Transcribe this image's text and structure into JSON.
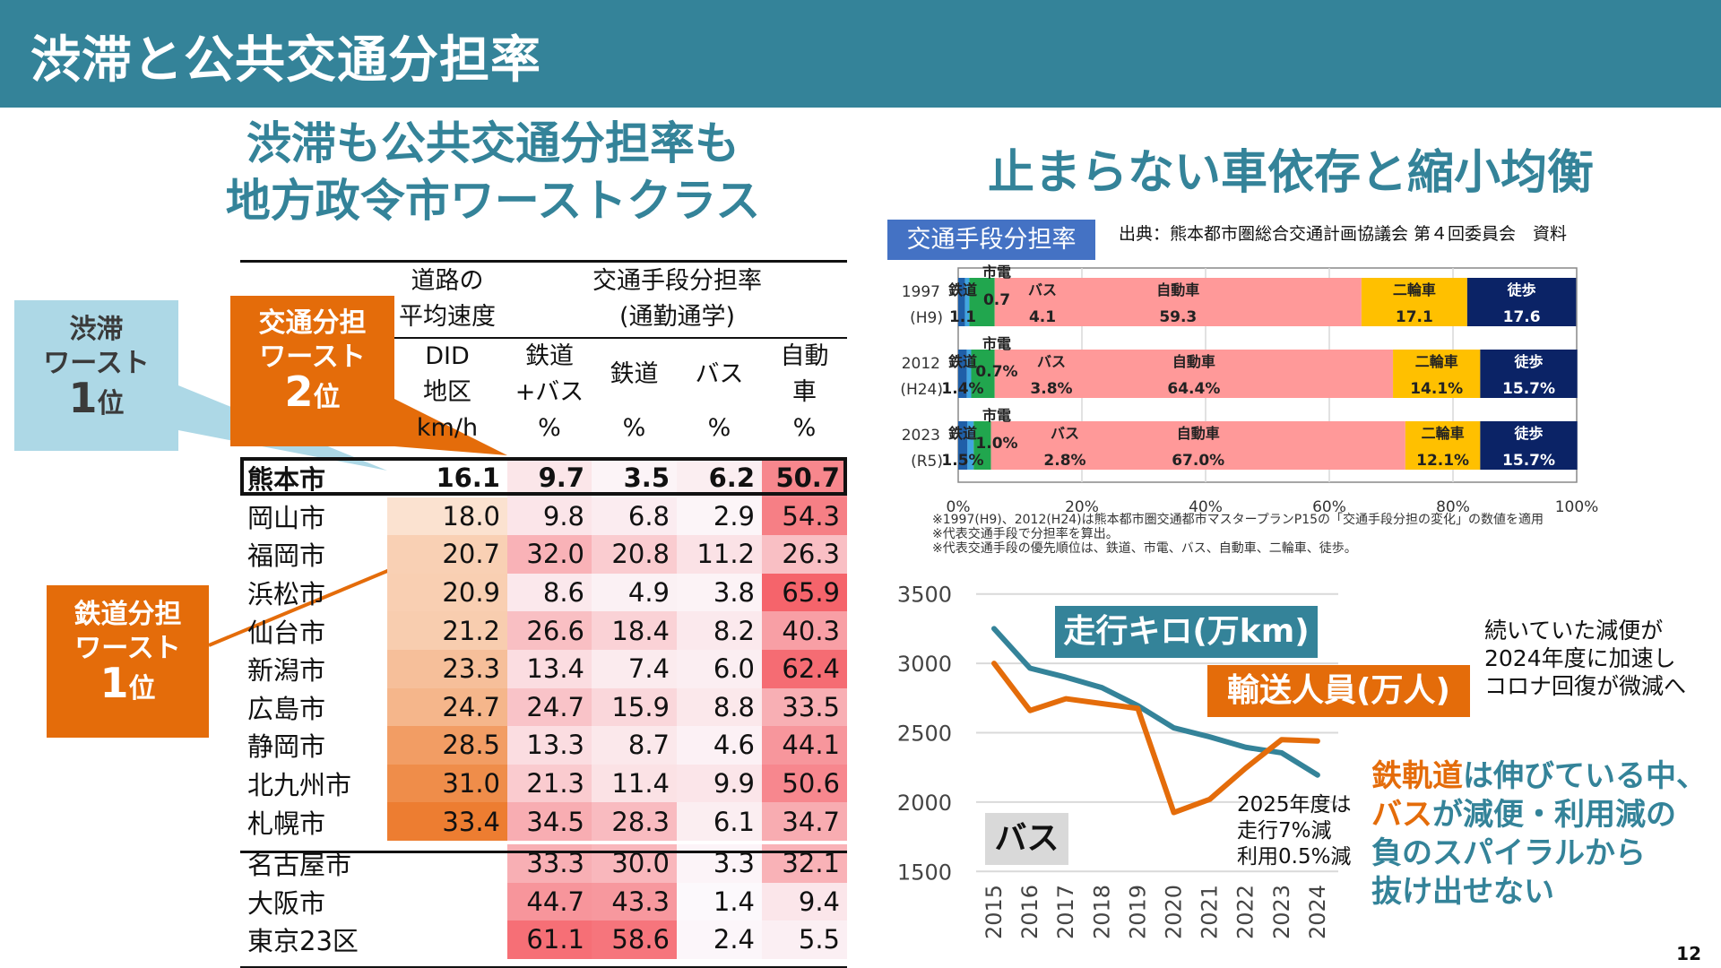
{
  "header": {
    "title": "渋滞と公共交通分担率"
  },
  "left": {
    "subtitle_lines": [
      "渋滞も公共交通分担率も",
      "地方政令市ワーストクラス"
    ],
    "callouts": {
      "congestion": {
        "line1": "渋滞",
        "line2": "ワースト",
        "rank": "1",
        "suffix": "位"
      },
      "modal_share": {
        "line1": "交通分担",
        "line2": "ワースト",
        "rank": "2",
        "suffix": "位"
      },
      "rail_share": {
        "line1": "鉄道分担",
        "line2": "ワースト",
        "rank": "1",
        "suffix": "位"
      }
    },
    "table": {
      "group_headers": {
        "speed_line1": "道路の",
        "speed_line2": "平均速度",
        "share_line1": "交通手段分担率",
        "share_line2": "(通勤通学)"
      },
      "columns": [
        {
          "line1": "DID",
          "line2": "地区",
          "unit": "km/h"
        },
        {
          "line1": "鉄道",
          "line2": "+バス",
          "unit": "%"
        },
        {
          "line1": "鉄道",
          "line2": "",
          "unit": "%"
        },
        {
          "line1": "バス",
          "line2": "",
          "unit": "%"
        },
        {
          "line1": "自動",
          "line2": "車",
          "unit": "%"
        }
      ],
      "rows": [
        {
          "city": "熊本市",
          "did_speed": "16.1",
          "rail_bus": "9.7",
          "rail": "3.5",
          "bus": "6.2",
          "car": "50.7",
          "highlight": true
        },
        {
          "city": "岡山市",
          "did_speed": "18.0",
          "rail_bus": "9.8",
          "rail": "6.8",
          "bus": "2.9",
          "car": "54.3"
        },
        {
          "city": "福岡市",
          "did_speed": "20.7",
          "rail_bus": "32.0",
          "rail": "20.8",
          "bus": "11.2",
          "car": "26.3"
        },
        {
          "city": "浜松市",
          "did_speed": "20.9",
          "rail_bus": "8.6",
          "rail": "4.9",
          "bus": "3.8",
          "car": "65.9"
        },
        {
          "city": "仙台市",
          "did_speed": "21.2",
          "rail_bus": "26.6",
          "rail": "18.4",
          "bus": "8.2",
          "car": "40.3"
        },
        {
          "city": "新潟市",
          "did_speed": "23.3",
          "rail_bus": "13.4",
          "rail": "7.4",
          "bus": "6.0",
          "car": "62.4"
        },
        {
          "city": "広島市",
          "did_speed": "24.7",
          "rail_bus": "24.7",
          "rail": "15.9",
          "bus": "8.8",
          "car": "33.5"
        },
        {
          "city": "静岡市",
          "did_speed": "28.5",
          "rail_bus": "13.3",
          "rail": "8.7",
          "bus": "4.6",
          "car": "44.1"
        },
        {
          "city": "北九州市",
          "did_speed": "31.0",
          "rail_bus": "21.3",
          "rail": "11.4",
          "bus": "9.9",
          "car": "50.6"
        },
        {
          "city": "札幌市",
          "did_speed": "33.4",
          "rail_bus": "34.5",
          "rail": "28.3",
          "bus": "6.1",
          "car": "34.7"
        },
        {
          "city": "名古屋市",
          "did_speed": "",
          "rail_bus": "33.3",
          "rail": "30.0",
          "bus": "3.3",
          "car": "32.1"
        },
        {
          "city": "大阪市",
          "did_speed": "",
          "rail_bus": "44.7",
          "rail": "43.3",
          "bus": "1.4",
          "car": "9.4"
        },
        {
          "city": "東京23区",
          "did_speed": "",
          "rail_bus": "61.1",
          "rail": "58.6",
          "bus": "2.4",
          "car": "5.5"
        }
      ]
    }
  },
  "right": {
    "subtitle": "止まらない車依存と縮小均衡",
    "badge": "交通手段分担率",
    "source": "出典：熊本都市圏総合交通計画協議会 第４回委員会　資料",
    "notes": [
      "※1997(H9)、2012(H24)は熊本都市圏交通都市マスタープランP15の「交通手段分担の変化」の数値を適用",
      "※代表交通手段で分担率を算出。",
      "※代表交通手段の優先順位は、鉄道、市電、バス、自動車、二輪車、徒歩。"
    ],
    "legend_km": "走行キロ(万km)",
    "legend_passengers": "輸送人員(万人)",
    "bus_tag": "バス",
    "note_2025": [
      "2025年度は",
      "走行7%減",
      "利用0.5%減"
    ],
    "note_right": [
      "続いていた減便が",
      "2024年度に加速し",
      "コロナ回復が微減へ"
    ],
    "conclusion": [
      {
        "accent": "鉄軌道",
        "rest": "は伸びている中、"
      },
      {
        "accent": "バス",
        "rest": "が減便・利用減の"
      },
      {
        "accent": "",
        "rest": "負のスパイラルから"
      },
      {
        "accent": "",
        "rest": "抜け出せない"
      }
    ]
  },
  "page_number": "12",
  "colors": {
    "header": "#348399",
    "accent_orange": "#e46c0a",
    "callout_blue": "#add8e6",
    "badge_blue": "#4472c4"
  },
  "chart_data": [
    {
      "type": "bar",
      "orientation": "horizontal-stacked-100",
      "title": "交通手段分担率",
      "categories": [
        "1997 (H9)",
        "2012 (H24)",
        "2023 (R5)"
      ],
      "category_labels": [
        [
          "1997",
          "(H9)"
        ],
        [
          "2012",
          "(H24)"
        ],
        [
          "2023",
          "(R5)"
        ]
      ],
      "series": [
        {
          "name": "鉄道",
          "color": "#1f5fa8",
          "values": [
            1.1,
            1.4,
            1.5
          ],
          "labels": [
            "1.1",
            "1.4%",
            "1.5%"
          ]
        },
        {
          "name": "市電",
          "color": "#41a5e0",
          "values": [
            0.7,
            0.7,
            1.0
          ],
          "labels": [
            "0.7",
            "0.7%",
            "1.0%"
          ]
        },
        {
          "name": "バス",
          "color": "#21a64e",
          "values": [
            4.1,
            3.8,
            2.8
          ],
          "labels": [
            "4.1",
            "3.8%",
            "2.8%"
          ]
        },
        {
          "name": "自動車",
          "color": "#ff9999",
          "values": [
            59.3,
            64.4,
            67.0
          ],
          "labels": [
            "59.3",
            "64.4%",
            "67.0%"
          ]
        },
        {
          "name": "二輪車",
          "color": "#ffc000",
          "values": [
            17.1,
            14.1,
            12.1
          ],
          "labels": [
            "17.1",
            "14.1%",
            "12.1%"
          ]
        },
        {
          "name": "徒歩",
          "color": "#0b2366",
          "values": [
            17.6,
            15.7,
            15.7
          ],
          "labels": [
            "17.6",
            "15.7%",
            "15.7%"
          ]
        }
      ],
      "xlim": [
        0,
        100
      ],
      "xticks": [
        "0%",
        "20%",
        "40%",
        "60%",
        "80%",
        "100%"
      ],
      "grid": true
    },
    {
      "type": "line",
      "title": "バス",
      "x": [
        "2015",
        "2016",
        "2017",
        "2018",
        "2019",
        "2020",
        "2021",
        "2022",
        "2023",
        "2024"
      ],
      "series": [
        {
          "name": "走行キロ(万km)",
          "color": "#348399",
          "values": [
            3250,
            2965,
            2900,
            2825,
            2695,
            2535,
            2470,
            2395,
            2355,
            2195
          ]
        },
        {
          "name": "輸送人員(万人)",
          "color": "#e46c0a",
          "values": [
            3000,
            2660,
            2745,
            2710,
            2675,
            1925,
            2020,
            2245,
            2450,
            2440
          ]
        }
      ],
      "ylim": [
        1500,
        3500
      ],
      "yticks": [
        "1500",
        "2000",
        "2500",
        "3000",
        "3500"
      ],
      "grid": true
    }
  ]
}
